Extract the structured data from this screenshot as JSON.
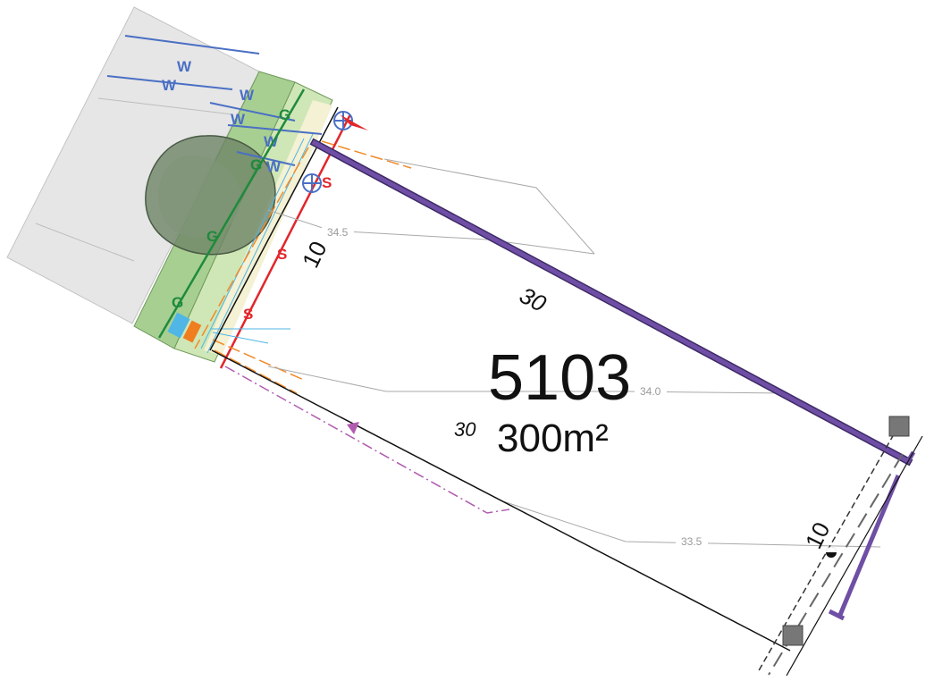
{
  "lot": {
    "number": "5103",
    "area": "300m²"
  },
  "dimensions": {
    "north_boundary": "30",
    "south_boundary": "30",
    "west_frontage": "10",
    "east_rear": "10"
  },
  "contours": [
    {
      "label": "34.5"
    },
    {
      "label": "34.0"
    },
    {
      "label": "33.5"
    }
  ],
  "services": {
    "water": "W",
    "gas": "G",
    "sewer": "S"
  },
  "colors": {
    "boundary_purple": "#6f4fa5",
    "boundary_purple_dark": "#3d2a66",
    "water_line": "#4a6fc4",
    "gas_line": "#1f8a3c",
    "sewer_line": "#e2262b",
    "telecom_line": "#f08a2a",
    "easement_line": "#b05bb0",
    "verge_green": "#a7cf92",
    "road_grey": "#e6e6e6",
    "tree_fill": "#6e8466",
    "contour_grey": "#a9a9a9",
    "pit_blue": "#4fb6e6",
    "pit_orange": "#f07e1e"
  }
}
